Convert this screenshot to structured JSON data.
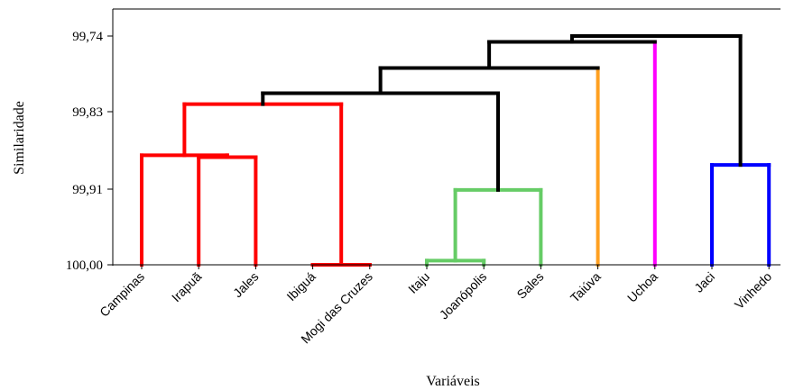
{
  "chart_data": {
    "type": "dendrogram",
    "xlabel": "Variáveis",
    "ylabel": "Similaridade",
    "yticks": [
      "99,74",
      "99,83",
      "99,91",
      "100,00"
    ],
    "ytick_values": [
      99.74,
      99.83,
      99.91,
      100.0
    ],
    "ylim": [
      99.7,
      100.0
    ],
    "grid": false,
    "leaves": [
      "Campinas",
      "Irapuã",
      "Jales",
      "Ibiguá",
      "Mogi das Cruzes",
      "Itaju",
      "Joanópolis",
      "Sales",
      "Taiúva",
      "Uchoa",
      "Jaci",
      "Vinhedo"
    ],
    "colors": {
      "red": "#ff0000",
      "green": "#66cc66",
      "orange": "#ffa020",
      "magenta": "#ff00ff",
      "blue": "#0000ff",
      "black": "#000000"
    },
    "merges": [
      {
        "id": "c1",
        "children": [
          "Ibiguá",
          "Mogi das Cruzes"
        ],
        "similarity": 100.0,
        "color": "red"
      },
      {
        "id": "c2",
        "children": [
          "Itaju",
          "Joanópolis"
        ],
        "similarity": 99.995,
        "color": "green"
      },
      {
        "id": "c3",
        "children": [
          "Irapuã",
          "Jales"
        ],
        "similarity": 99.877,
        "color": "red"
      },
      {
        "id": "c4",
        "children": [
          "Campinas",
          "c3"
        ],
        "similarity": 99.875,
        "color": "red"
      },
      {
        "id": "c5",
        "children": [
          "c2",
          "Sales"
        ],
        "similarity": 99.911,
        "color": "green"
      },
      {
        "id": "c6",
        "children": [
          "Jaci",
          "Vinhedo"
        ],
        "similarity": 99.885,
        "color": "blue"
      },
      {
        "id": "c7",
        "children": [
          "c4",
          "c1"
        ],
        "similarity": 99.821,
        "color": "red"
      },
      {
        "id": "c8",
        "children": [
          "c7",
          "c5"
        ],
        "similarity": 99.808,
        "color": "black"
      },
      {
        "id": "c9",
        "children": [
          "c8",
          "Taiúva"
        ],
        "similarity": 99.778,
        "color": "black",
        "right_color": "orange"
      },
      {
        "id": "c10",
        "children": [
          "c9",
          "Uchoa"
        ],
        "similarity": 99.747,
        "color": "black",
        "right_color": "magenta"
      },
      {
        "id": "c11",
        "children": [
          "c10",
          "c6"
        ],
        "similarity": 99.74,
        "color": "black"
      }
    ]
  }
}
